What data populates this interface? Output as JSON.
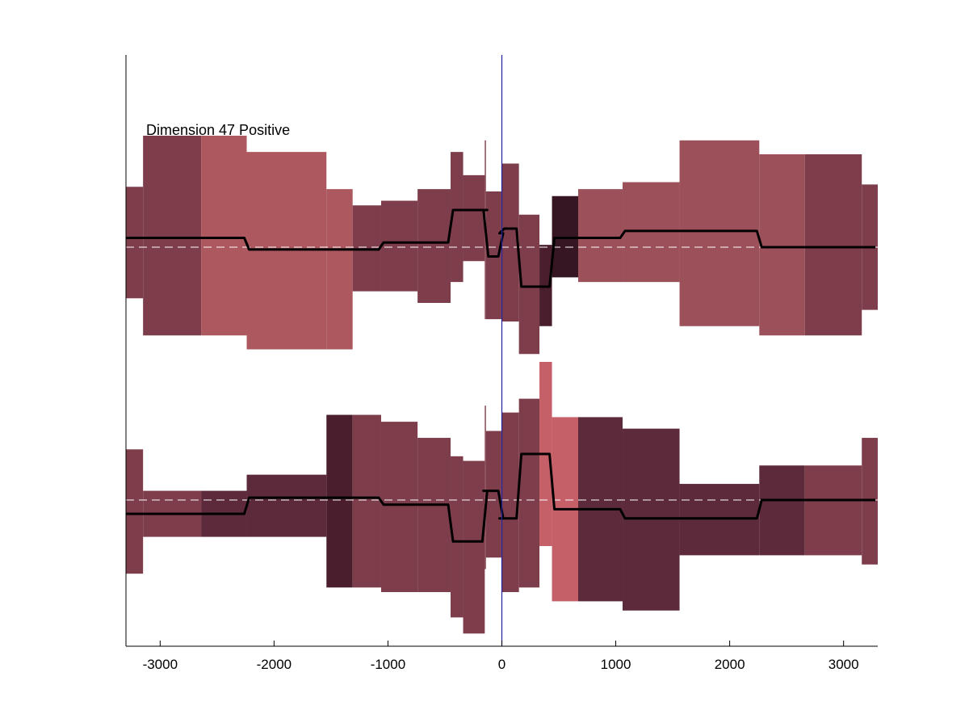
{
  "chart_data": {
    "type": "area",
    "title": "",
    "xlabel": "",
    "ylabel": "",
    "xlim": [
      -3300,
      3300
    ],
    "x_ticks": [
      -3000,
      -2000,
      -1000,
      0,
      1000,
      2000,
      3000
    ],
    "x_tick_labels": [
      "-3000",
      "-2000",
      "-1000",
      "0",
      "1000",
      "2000",
      "3000"
    ],
    "vertical_marker_x": 0,
    "vertical_marker_color": "#2020a0",
    "axis_color": "#000000",
    "line_color": "#000000",
    "baseline_color": "#ffffff",
    "annotation": "Dimension 47 Positive",
    "panels": [
      {
        "name": "",
        "baseline": 0,
        "ylim": [
          -2.5,
          2.9
        ],
        "segments": [
          {
            "x0": -3300,
            "x1": -3150,
            "lower": -1.1,
            "upper": 1.3,
            "mean": 0.2,
            "color": "#7e3d4a"
          },
          {
            "x0": -3150,
            "x1": -2640,
            "lower": -1.9,
            "upper": 2.4,
            "mean": 0.2,
            "color": "#7e3d4a"
          },
          {
            "x0": -2640,
            "x1": -2240,
            "lower": -1.9,
            "upper": 2.4,
            "mean": 0.2,
            "color": "#ad575f"
          },
          {
            "x0": -2240,
            "x1": -1540,
            "lower": -2.2,
            "upper": 2.05,
            "mean": -0.05,
            "color": "#ad575f"
          },
          {
            "x0": -1540,
            "x1": -1310,
            "lower": -2.2,
            "upper": 1.25,
            "mean": -0.05,
            "color": "#ad575f"
          },
          {
            "x0": -1310,
            "x1": -1060,
            "lower": -0.95,
            "upper": 0.9,
            "mean": -0.05,
            "color": "#7e3d4a"
          },
          {
            "x0": -1060,
            "x1": -740,
            "lower": -0.95,
            "upper": 1.0,
            "mean": 0.1,
            "color": "#7e3d4a"
          },
          {
            "x0": -740,
            "x1": -450,
            "lower": -1.2,
            "upper": 1.25,
            "mean": 0.1,
            "color": "#7e3d4a"
          },
          {
            "x0": -450,
            "x1": -340,
            "lower": -0.75,
            "upper": 2.05,
            "mean": 0.8,
            "color": "#7e3d4a"
          },
          {
            "x0": -340,
            "x1": -150,
            "lower": -0.3,
            "upper": 1.55,
            "mean": 0.8,
            "color": "#7e3d4a"
          },
          {
            "x0": -150,
            "x1": -140,
            "lower": -1.55,
            "upper": 2.3,
            "mean": 0.8,
            "color": "#7e3d4a"
          },
          {
            "x0": -140,
            "x1": -10,
            "lower": -1.55,
            "upper": 1.2,
            "mean": -0.2,
            "color": "#7e3d4a"
          },
          {
            "x0": -10,
            "x1": 0,
            "lower": -1.55,
            "upper": 1.2,
            "mean": 0.3,
            "color": "#7e3d4a"
          },
          {
            "x0": 0,
            "x1": 150,
            "lower": -1.6,
            "upper": 1.8,
            "mean": 0.4,
            "color": "#7e3d4a"
          },
          {
            "x0": 150,
            "x1": 330,
            "lower": -2.3,
            "upper": 0.7,
            "mean": -0.85,
            "color": "#7e3d4a"
          },
          {
            "x0": 330,
            "x1": 440,
            "lower": -1.7,
            "upper": 0.05,
            "mean": -0.85,
            "color": "#4a1e2c"
          },
          {
            "x0": 440,
            "x1": 670,
            "lower": -0.65,
            "upper": 1.1,
            "mean": 0.2,
            "color": "#351622"
          },
          {
            "x0": 670,
            "x1": 1060,
            "lower": -0.75,
            "upper": 1.25,
            "mean": 0.2,
            "color": "#9c505a"
          },
          {
            "x0": 1060,
            "x1": 1560,
            "lower": -0.75,
            "upper": 1.4,
            "mean": 0.35,
            "color": "#9c505a"
          },
          {
            "x0": 1560,
            "x1": 2260,
            "lower": -1.7,
            "upper": 2.3,
            "mean": 0.35,
            "color": "#9c505a"
          },
          {
            "x0": 2260,
            "x1": 2660,
            "lower": -1.9,
            "upper": 2.0,
            "mean": 0.0,
            "color": "#9c505a"
          },
          {
            "x0": 2660,
            "x1": 3160,
            "lower": -1.9,
            "upper": 2.0,
            "mean": 0.0,
            "color": "#7e3d4a"
          },
          {
            "x0": 3160,
            "x1": 3300,
            "lower": -1.35,
            "upper": 1.35,
            "mean": 0.0,
            "color": "#7e3d4a"
          }
        ]
      },
      {
        "name": "",
        "baseline": 0,
        "ylim": [
          -2.9,
          2.8
        ],
        "segments": [
          {
            "x0": -3300,
            "x1": -3150,
            "lower": -1.6,
            "upper": 1.1,
            "mean": -0.3,
            "color": "#7e3d4a"
          },
          {
            "x0": -3150,
            "x1": -2640,
            "lower": -0.8,
            "upper": 0.2,
            "mean": -0.3,
            "color": "#7e3d4a"
          },
          {
            "x0": -2640,
            "x1": -2240,
            "lower": -0.8,
            "upper": 0.2,
            "mean": -0.3,
            "color": "#5c2a3a"
          },
          {
            "x0": -2240,
            "x1": -1540,
            "lower": -0.8,
            "upper": 0.55,
            "mean": 0.05,
            "color": "#5c2a3a"
          },
          {
            "x0": -1540,
            "x1": -1310,
            "lower": -1.9,
            "upper": 1.85,
            "mean": 0.05,
            "color": "#4a1e2c"
          },
          {
            "x0": -1310,
            "x1": -1060,
            "lower": -1.9,
            "upper": 1.85,
            "mean": 0.05,
            "color": "#7e3d4a"
          },
          {
            "x0": -1060,
            "x1": -740,
            "lower": -2.0,
            "upper": 1.7,
            "mean": -0.1,
            "color": "#7e3d4a"
          },
          {
            "x0": -740,
            "x1": -450,
            "lower": -2.0,
            "upper": 1.35,
            "mean": -0.1,
            "color": "#7e3d4a"
          },
          {
            "x0": -450,
            "x1": -340,
            "lower": -2.55,
            "upper": 0.95,
            "mean": -0.9,
            "color": "#7e3d4a"
          },
          {
            "x0": -340,
            "x1": -150,
            "lower": -2.9,
            "upper": 0.85,
            "mean": -0.9,
            "color": "#7e3d4a"
          },
          {
            "x0": -150,
            "x1": -140,
            "lower": -1.5,
            "upper": 2.05,
            "mean": 0.2,
            "color": "#7e3d4a"
          },
          {
            "x0": -140,
            "x1": -10,
            "lower": -1.25,
            "upper": 1.5,
            "mean": 0.2,
            "color": "#7e3d4a"
          },
          {
            "x0": -10,
            "x1": 0,
            "lower": -1.25,
            "upper": 1.5,
            "mean": -0.4,
            "color": "#7e3d4a"
          },
          {
            "x0": 0,
            "x1": 150,
            "lower": -2.0,
            "upper": 1.9,
            "mean": -0.4,
            "color": "#7e3d4a"
          },
          {
            "x0": 150,
            "x1": 330,
            "lower": -1.9,
            "upper": 2.2,
            "mean": 1.0,
            "color": "#7e3d4a"
          },
          {
            "x0": 330,
            "x1": 440,
            "lower": -1.0,
            "upper": 3.0,
            "mean": 1.0,
            "color": "#c66068"
          },
          {
            "x0": 440,
            "x1": 670,
            "lower": -2.2,
            "upper": 1.8,
            "mean": -0.2,
            "color": "#c66068"
          },
          {
            "x0": 670,
            "x1": 1060,
            "lower": -2.2,
            "upper": 1.8,
            "mean": -0.2,
            "color": "#5c2a3a"
          },
          {
            "x0": 1060,
            "x1": 1560,
            "lower": -2.4,
            "upper": 1.55,
            "mean": -0.4,
            "color": "#5c2a3a"
          },
          {
            "x0": 1560,
            "x1": 2260,
            "lower": -1.2,
            "upper": 0.35,
            "mean": -0.4,
            "color": "#5c2a3a"
          },
          {
            "x0": 2260,
            "x1": 2660,
            "lower": -1.2,
            "upper": 0.75,
            "mean": 0.0,
            "color": "#5c2a3a"
          },
          {
            "x0": 2660,
            "x1": 3160,
            "lower": -1.2,
            "upper": 0.75,
            "mean": 0.0,
            "color": "#7e3d4a"
          },
          {
            "x0": 3160,
            "x1": 3300,
            "lower": -1.4,
            "upper": 1.35,
            "mean": 0.0,
            "color": "#7e3d4a"
          }
        ]
      }
    ]
  }
}
